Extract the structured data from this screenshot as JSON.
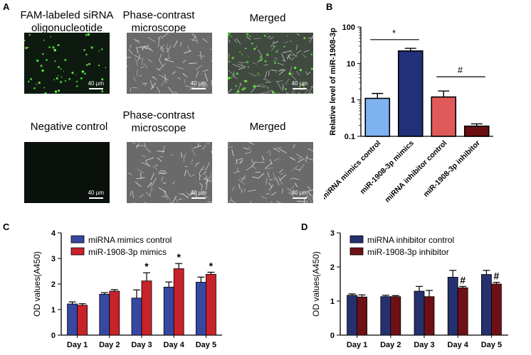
{
  "panels": {
    "A": {
      "letter": "A",
      "rows": [
        {
          "tiles": [
            {
              "label": "FAM-labeled siRNA oligonucleotide",
              "kind": "fam",
              "scale": "40 µm"
            },
            {
              "label": "Phase-contrast microscope",
              "kind": "phase",
              "scale": "40 µm"
            },
            {
              "label": "Merged",
              "kind": "merged",
              "scale": "40 µm"
            }
          ]
        },
        {
          "tiles": [
            {
              "label": "Negative control",
              "kind": "dark",
              "scale": "40 µm"
            },
            {
              "label": "Phase-contrast microscope",
              "kind": "phase",
              "scale": "40 µm"
            },
            {
              "label": "Merged",
              "kind": "phase",
              "scale": "40 µm"
            }
          ]
        }
      ]
    },
    "B": {
      "letter": "B"
    },
    "C": {
      "letter": "C"
    },
    "D": {
      "letter": "D"
    }
  },
  "colors": {
    "lightblue": "#7fb2f0",
    "navy": "#22307a",
    "salmon": "#e05a5a",
    "darkred": "#6b0f12",
    "blue": "#3748a3",
    "red": "#c8222a",
    "inhib_blue": "#24316e",
    "inhib_red": "#6e1116"
  },
  "chart_data": [
    {
      "type": "bar",
      "panel": "B",
      "ylabel": "Relative level of miR-1908-3p",
      "yscale": "log",
      "ylim": [
        0.1,
        100
      ],
      "yticks": [
        "0.1",
        "1",
        "10",
        "100"
      ],
      "categories": [
        "miRNA mimics control",
        "miR-1908-3p mimics",
        "miRNA inhibitor control",
        "miR-1908-3p inhibitor"
      ],
      "values": [
        1.1,
        22,
        1.2,
        0.19
      ],
      "errors": [
        0.4,
        4,
        0.55,
        0.03
      ],
      "bar_colors": [
        "lightblue",
        "navy",
        "salmon",
        "darkred"
      ],
      "annotations": [
        {
          "text": "*",
          "from": 0,
          "to": 1,
          "y": 45
        },
        {
          "text": "#",
          "from": 2,
          "to": 3,
          "y": 4.3
        }
      ]
    },
    {
      "type": "bar",
      "panel": "C",
      "ylabel": "OD values(A450)",
      "ylim": [
        0,
        4
      ],
      "yticks": [
        0,
        1,
        2,
        3,
        4
      ],
      "categories": [
        "Day 1",
        "Day 2",
        "Day 3",
        "Day 4",
        "Day 5"
      ],
      "series": [
        {
          "name": "miRNA mimics control",
          "color": "blue",
          "values": [
            1.22,
            1.6,
            1.45,
            1.88,
            2.07
          ],
          "errors": [
            0.08,
            0.06,
            0.32,
            0.2,
            0.2
          ]
        },
        {
          "name": "miR-1908-3p mimics",
          "color": "red",
          "values": [
            1.17,
            1.72,
            2.12,
            2.6,
            2.38
          ],
          "errors": [
            0.06,
            0.06,
            0.32,
            0.2,
            0.08
          ]
        }
      ],
      "marks": [
        {
          "text": "*",
          "index": 2
        },
        {
          "text": "*",
          "index": 3
        },
        {
          "text": "*",
          "index": 4
        }
      ],
      "legend": "top-left"
    },
    {
      "type": "bar",
      "panel": "D",
      "ylabel": "OD values(A450)",
      "ylim": [
        0,
        3
      ],
      "yticks": [
        0,
        1,
        2,
        3
      ],
      "categories": [
        "Day 1",
        "Day 2",
        "Day 3",
        "Day 4",
        "Day 5"
      ],
      "series": [
        {
          "name": "miRNA inhibitor control",
          "color": "inhib_blue",
          "values": [
            1.17,
            1.13,
            1.29,
            1.7,
            1.78
          ],
          "errors": [
            0.04,
            0.04,
            0.14,
            0.2,
            0.12
          ]
        },
        {
          "name": "miR-1908-3p inhibitor",
          "color": "inhib_red",
          "values": [
            1.12,
            1.13,
            1.13,
            1.39,
            1.5
          ],
          "errors": [
            0.06,
            0.03,
            0.18,
            0.04,
            0.05
          ]
        }
      ],
      "marks": [
        {
          "text": "#",
          "index": 3
        },
        {
          "text": "#",
          "index": 4
        }
      ],
      "legend": "top-left"
    }
  ]
}
